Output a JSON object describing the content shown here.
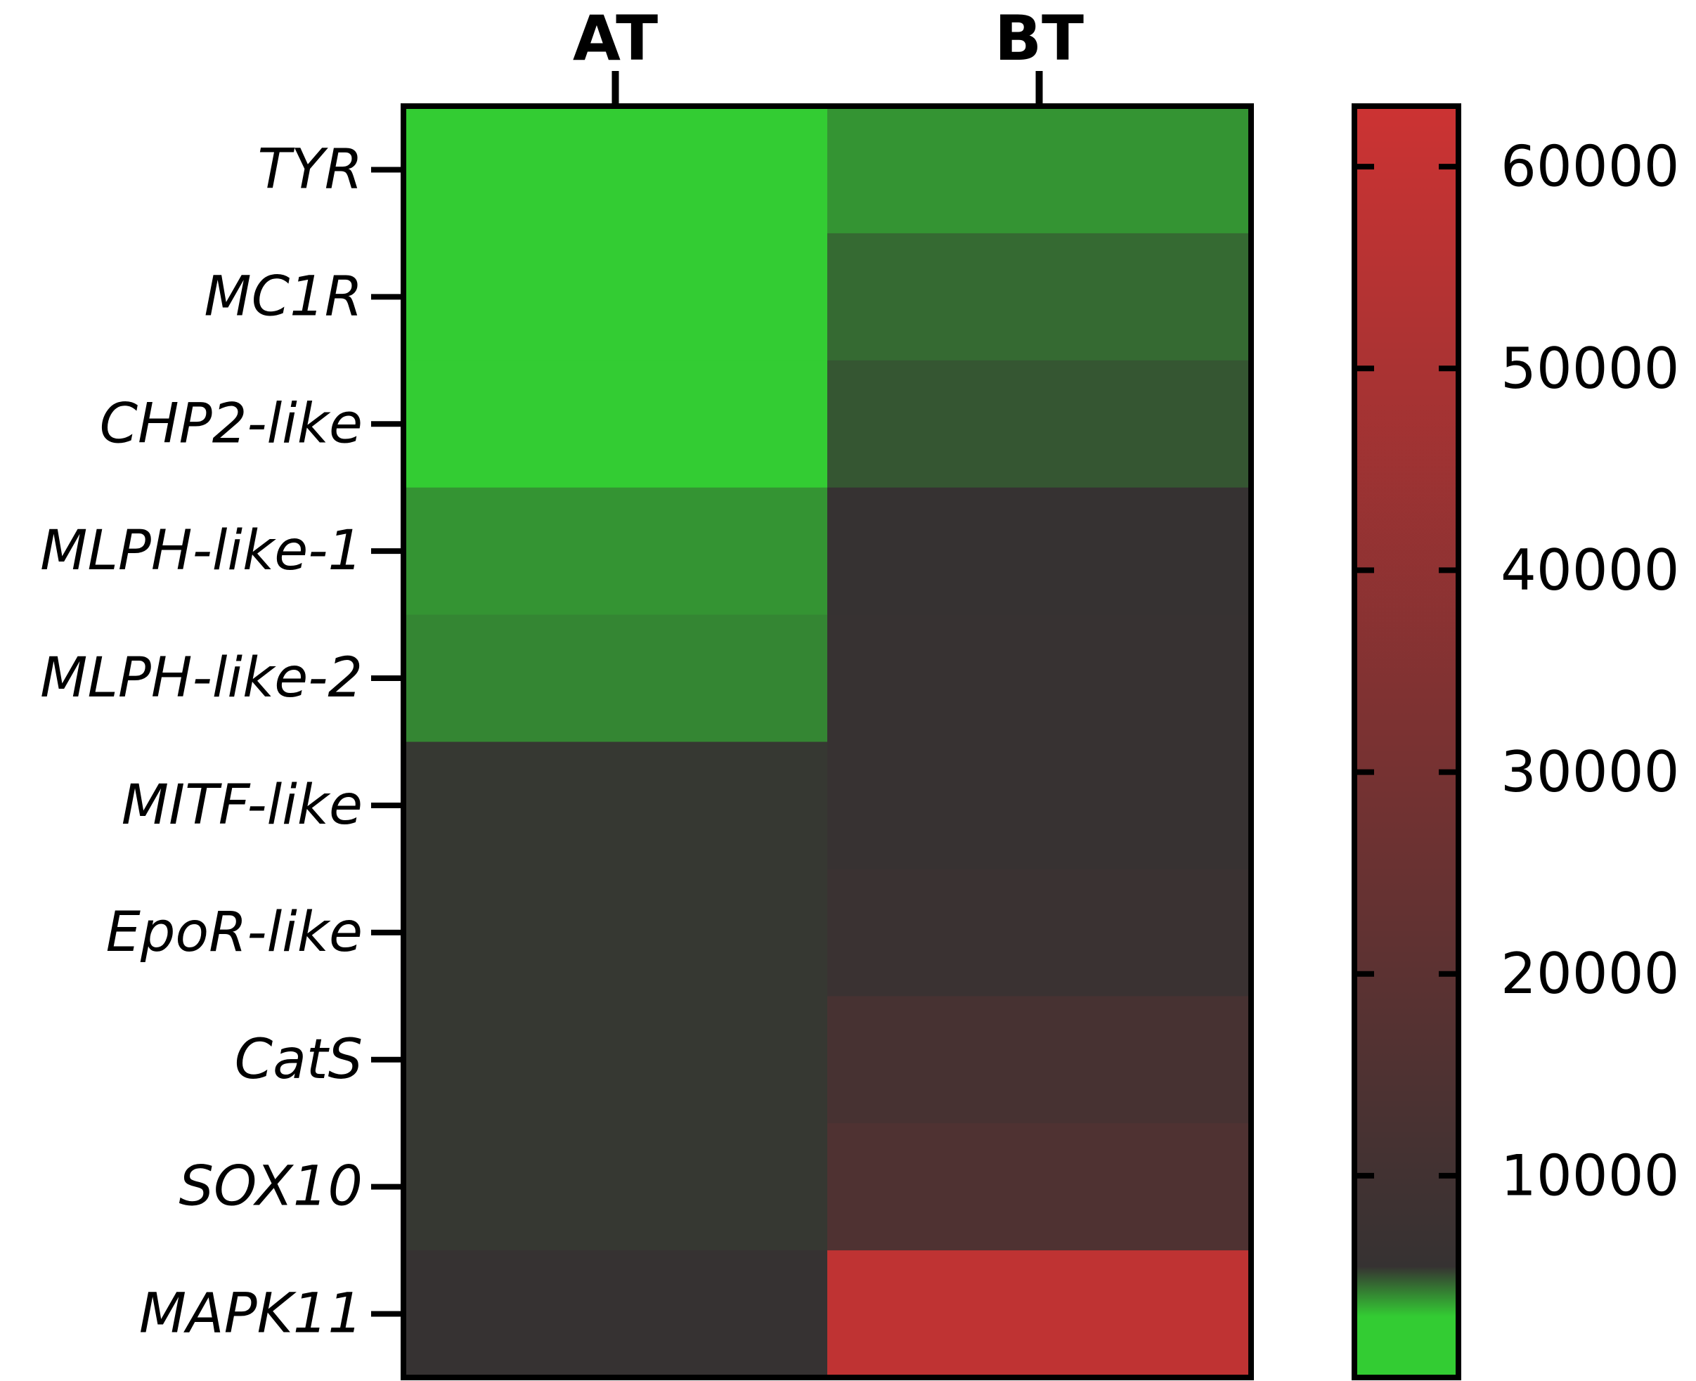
{
  "chart_data": {
    "type": "heatmap",
    "columns": [
      "AT",
      "BT"
    ],
    "rows": [
      "TYR",
      "MC1R",
      "CHP2-like",
      "MLPH-like-1",
      "MLPH-like-2",
      "MITF-like",
      "EpoR-like",
      "CatS",
      "SOX10",
      "MAPK11"
    ],
    "values": [
      [
        0,
        2000
      ],
      [
        0,
        3500
      ],
      [
        0,
        4200
      ],
      [
        2000,
        5600
      ],
      [
        2500,
        5700
      ],
      [
        5300,
        5700
      ],
      [
        5300,
        7000
      ],
      [
        5300,
        12000
      ],
      [
        5300,
        15000
      ],
      [
        5500,
        58000
      ]
    ],
    "colorbar": {
      "ticks": [
        10000,
        20000,
        30000,
        40000,
        50000,
        60000
      ],
      "tick_labels": [
        "10000",
        "20000",
        "30000",
        "40000",
        "50000",
        "60000"
      ],
      "range": [
        0,
        63000
      ],
      "colors": {
        "low": "#33cc33",
        "mid": "#363232",
        "high": "#cc3333"
      },
      "mid_value": 5500
    }
  }
}
